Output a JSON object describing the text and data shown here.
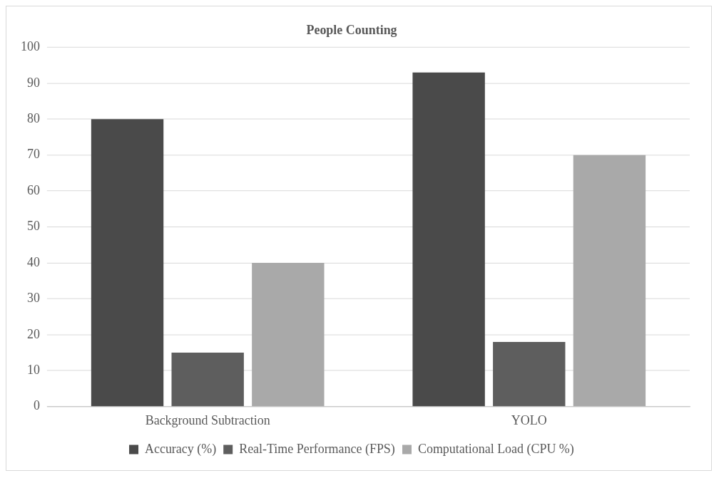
{
  "chart_data": {
    "type": "bar",
    "title": "People Counting",
    "categories": [
      "Background Subtraction",
      "YOLO"
    ],
    "series": [
      {
        "name": "Accuracy (%)",
        "color": "#4a4a4a",
        "values": [
          80,
          93
        ]
      },
      {
        "name": "Real-Time Performance (FPS)",
        "color": "#5e5e5e",
        "values": [
          15,
          18
        ]
      },
      {
        "name": "Computational Load (CPU %)",
        "color": "#a9a9a9",
        "values": [
          40,
          70
        ]
      }
    ],
    "ylim": [
      0,
      100
    ],
    "yticks": [
      0,
      10,
      20,
      30,
      40,
      50,
      60,
      70,
      80,
      90,
      100
    ],
    "grid": "y",
    "legend": "bottom"
  }
}
